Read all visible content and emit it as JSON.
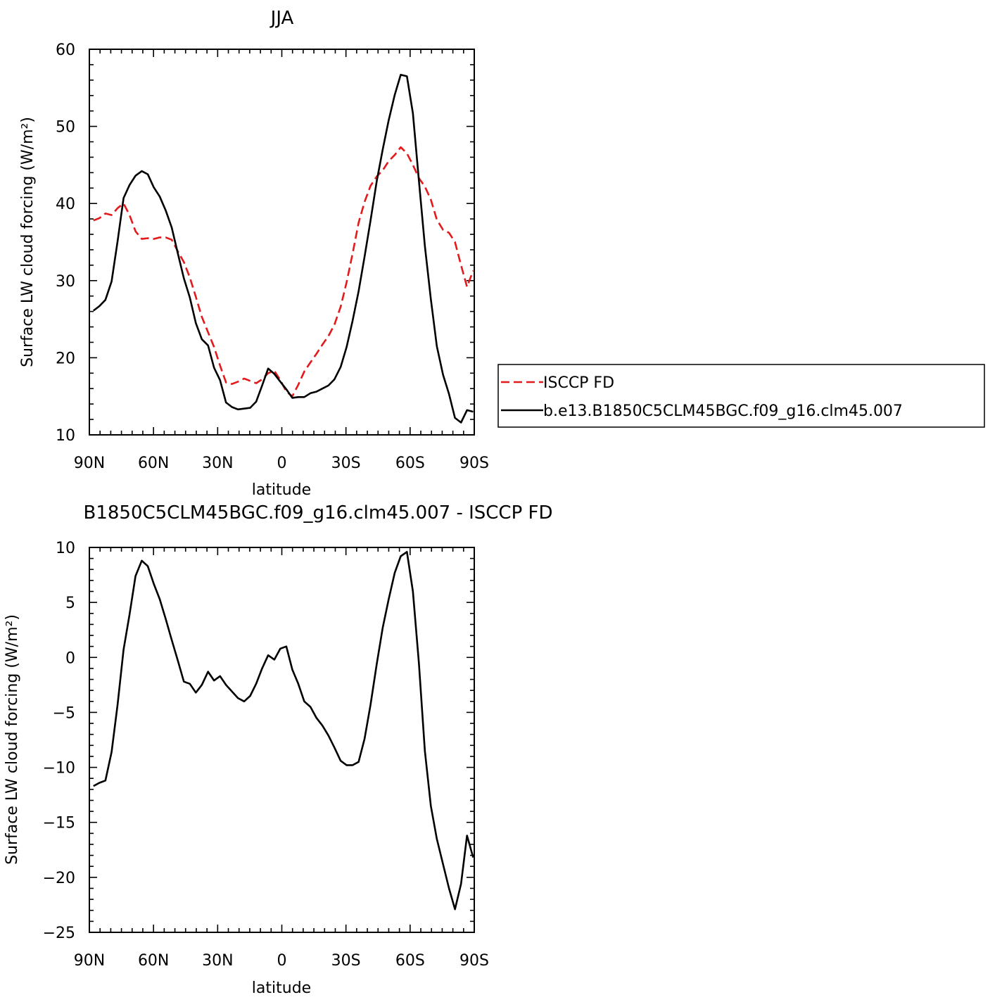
{
  "chart_data": [
    {
      "type": "line",
      "title": "JJA",
      "xlabel": "latitude",
      "ylabel": "Surface LW cloud forcing (W/m²)",
      "xlim": [
        90,
        -90
      ],
      "ylim": [
        10,
        60
      ],
      "xticks": [
        90,
        60,
        30,
        0,
        -30,
        -60,
        -90
      ],
      "xtick_labels": [
        "90N",
        "60N",
        "30N",
        "0",
        "30S",
        "60S",
        "90S"
      ],
      "yticks": [
        10,
        20,
        30,
        40,
        50,
        60
      ],
      "ytick_labels": [
        "10",
        "20",
        "30",
        "40",
        "50",
        "60"
      ],
      "legend": "right",
      "series": [
        {
          "name": "ISCCP FD",
          "color": "#e31a1c",
          "dash": "dashed",
          "x": [
            88.1,
            85.3,
            82.5,
            79.6,
            76.8,
            74.0,
            71.2,
            68.4,
            65.5,
            62.7,
            59.9,
            57.1,
            54.3,
            51.5,
            48.6,
            45.8,
            43.0,
            40.2,
            37.4,
            34.5,
            31.7,
            28.9,
            26.1,
            23.3,
            20.5,
            17.6,
            14.8,
            12.0,
            9.2,
            6.4,
            3.5,
            0.7,
            -2.1,
            -4.9,
            -7.7,
            -10.5,
            -13.4,
            -16.2,
            -19.0,
            -21.8,
            -24.6,
            -27.5,
            -30.3,
            -33.1,
            -35.9,
            -38.7,
            -41.5,
            -44.4,
            -47.2,
            -50.0,
            -52.8,
            -55.6,
            -58.5,
            -61.3,
            -64.1,
            -66.9,
            -69.7,
            -72.5,
            -75.4,
            -78.2,
            -81.0,
            -83.8,
            -86.6,
            -89.5
          ],
          "values": [
            37.8,
            38.1,
            38.7,
            38.5,
            39.4,
            40.0,
            38.5,
            36.4,
            35.4,
            35.5,
            35.4,
            35.6,
            35.6,
            35.3,
            33.8,
            32.4,
            30.4,
            27.9,
            25.3,
            23.3,
            21.4,
            19.0,
            16.8,
            16.6,
            16.9,
            17.3,
            17.0,
            16.7,
            17.2,
            18.0,
            18.3,
            17.1,
            15.6,
            15.0,
            16.5,
            18.2,
            19.4,
            20.5,
            21.7,
            22.8,
            24.3,
            26.6,
            29.8,
            33.5,
            37.5,
            40.2,
            42.3,
            43.5,
            44.3,
            45.5,
            46.3,
            47.3,
            46.5,
            45.0,
            43.3,
            42.2,
            40.5,
            37.9,
            36.6,
            36.2,
            35.0,
            32.0,
            29.2,
            31.3
          ]
        },
        {
          "name": "b.e13.B1850C5CLM45BGC.f09_g16.clm45.007",
          "color": "#000000",
          "dash": "solid",
          "x": [
            88.1,
            85.3,
            82.5,
            79.6,
            76.8,
            74.0,
            71.2,
            68.4,
            65.5,
            62.7,
            59.9,
            57.1,
            54.3,
            51.5,
            48.6,
            45.8,
            43.0,
            40.2,
            37.4,
            34.5,
            31.7,
            28.9,
            26.1,
            23.3,
            20.5,
            17.6,
            14.8,
            12.0,
            9.2,
            6.4,
            3.5,
            0.7,
            -2.1,
            -4.9,
            -7.7,
            -10.5,
            -13.4,
            -16.2,
            -19.0,
            -21.8,
            -24.6,
            -27.5,
            -30.3,
            -33.1,
            -35.9,
            -38.7,
            -41.5,
            -44.4,
            -47.2,
            -50.0,
            -52.8,
            -55.6,
            -58.5,
            -61.3,
            -64.1,
            -66.9,
            -69.7,
            -72.5,
            -75.4,
            -78.2,
            -81.0,
            -83.8,
            -86.6,
            -89.5
          ],
          "values": [
            26.1,
            26.7,
            27.5,
            29.9,
            35.1,
            40.7,
            42.4,
            43.6,
            44.2,
            43.8,
            42.1,
            40.9,
            39.1,
            36.9,
            33.5,
            30.3,
            27.8,
            24.5,
            22.4,
            21.6,
            18.7,
            17.1,
            14.2,
            13.6,
            13.3,
            13.4,
            13.5,
            14.3,
            16.4,
            18.6,
            17.9,
            16.9,
            15.9,
            14.8,
            14.9,
            14.9,
            15.4,
            15.6,
            16.0,
            16.4,
            17.2,
            18.8,
            21.4,
            24.8,
            28.6,
            33.1,
            37.8,
            42.9,
            47.0,
            50.8,
            54.1,
            56.7,
            56.5,
            51.7,
            43.0,
            34.5,
            27.6,
            21.5,
            17.8,
            15.3,
            12.2,
            11.6,
            13.2,
            13.0
          ]
        }
      ]
    },
    {
      "type": "line",
      "title": "B1850C5CLM45BGC.f09_g16.clm45.007 - ISCCP FD",
      "xlabel": "latitude",
      "ylabel": "Surface LW cloud forcing (W/m²)",
      "xlim": [
        90,
        -90
      ],
      "ylim": [
        -25,
        10
      ],
      "xticks": [
        90,
        60,
        30,
        0,
        -30,
        -60,
        -90
      ],
      "xtick_labels": [
        "90N",
        "60N",
        "30N",
        "0",
        "30S",
        "60S",
        "90S"
      ],
      "yticks": [
        -25,
        -20,
        -15,
        -10,
        -5,
        0,
        5,
        10
      ],
      "ytick_labels": [
        "−25",
        "−20",
        "−15",
        "−10",
        "−5",
        "0",
        "5",
        "10"
      ],
      "series": [
        {
          "color": "#000000",
          "dash": "solid",
          "x": [
            88.1,
            85.3,
            82.5,
            79.6,
            76.8,
            74.0,
            71.2,
            68.4,
            65.5,
            62.7,
            59.9,
            57.1,
            54.3,
            51.5,
            48.6,
            45.8,
            43.0,
            40.2,
            37.4,
            34.5,
            31.7,
            28.9,
            26.1,
            23.3,
            20.5,
            17.6,
            14.8,
            12.0,
            9.2,
            6.4,
            3.5,
            0.7,
            -2.1,
            -4.9,
            -7.7,
            -10.5,
            -13.4,
            -16.2,
            -19.0,
            -21.8,
            -24.6,
            -27.5,
            -30.3,
            -33.1,
            -35.9,
            -38.7,
            -41.5,
            -44.4,
            -47.2,
            -50.0,
            -52.8,
            -55.6,
            -58.5,
            -61.3,
            -64.1,
            -66.9,
            -69.7,
            -72.5,
            -75.4,
            -78.2,
            -81.0,
            -83.8,
            -86.6,
            -89.5
          ],
          "values": [
            -11.7,
            -11.4,
            -11.2,
            -8.6,
            -4.3,
            0.7,
            3.9,
            7.4,
            8.8,
            8.3,
            6.7,
            5.3,
            3.5,
            1.6,
            -0.3,
            -2.2,
            -2.4,
            -3.2,
            -2.5,
            -1.3,
            -2.1,
            -1.7,
            -2.5,
            -3.1,
            -3.7,
            -4.0,
            -3.5,
            -2.4,
            -1.0,
            0.2,
            -0.2,
            0.8,
            1.0,
            -1.1,
            -2.4,
            -4.0,
            -4.5,
            -5.5,
            -6.2,
            -7.1,
            -8.2,
            -9.4,
            -9.8,
            -9.8,
            -9.5,
            -7.4,
            -4.3,
            -0.6,
            2.7,
            5.3,
            7.7,
            9.2,
            9.6,
            6.0,
            -0.5,
            -8.5,
            -13.5,
            -16.5,
            -18.8,
            -21.0,
            -22.9,
            -20.6,
            -16.2,
            -18.2
          ]
        }
      ]
    }
  ]
}
